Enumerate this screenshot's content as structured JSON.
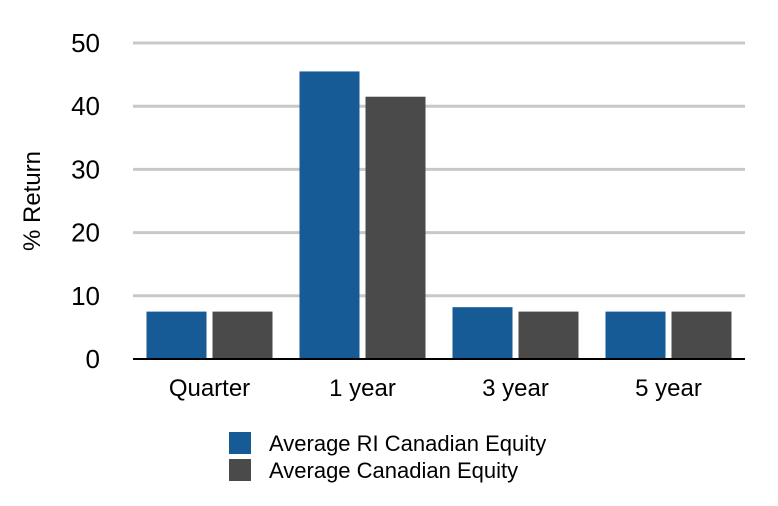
{
  "chart_data": {
    "type": "bar",
    "title": "",
    "xlabel": "",
    "ylabel": "% Return",
    "ylim": [
      0,
      50
    ],
    "yticks": [
      0,
      10,
      20,
      30,
      40,
      50
    ],
    "grid": true,
    "legend_position": "bottom",
    "categories": [
      "Quarter",
      "1 year",
      "3 year",
      "5 year"
    ],
    "series": [
      {
        "name": "Average RI Canadian Equity",
        "color": "#165a96",
        "values": [
          7.5,
          45.5,
          8.2,
          7.5
        ]
      },
      {
        "name": "Average Canadian Equity",
        "color": "#4a4a4a",
        "values": [
          7.5,
          41.5,
          7.5,
          7.5
        ]
      }
    ]
  }
}
